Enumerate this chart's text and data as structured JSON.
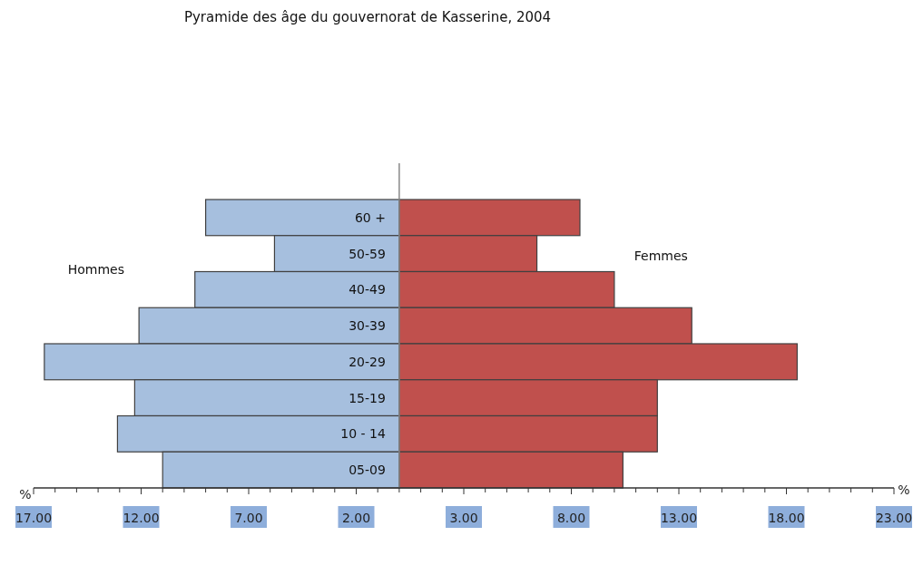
{
  "chart_data": {
    "type": "bar",
    "orientation": "horizontal",
    "stacked": true,
    "title": "Pyramide des âge du gouvernorat de Kasserine, 2004",
    "xlabel": "%",
    "legend": false,
    "categories": [
      "60 +",
      "50-59",
      "40-49",
      "30-39",
      "20-29",
      "15-19",
      "10 - 14",
      "05-09"
    ],
    "series": [
      {
        "name": "Hommes",
        "color": "#a6bfde",
        "values": [
          -9.0,
          -5.8,
          -9.5,
          -12.1,
          -16.5,
          -12.3,
          -13.1,
          -11.0
        ]
      },
      {
        "name": "Femmes",
        "color": "#c0504d",
        "values": [
          8.4,
          6.4,
          10.0,
          13.6,
          18.5,
          12.0,
          12.0,
          10.4
        ]
      }
    ],
    "xlim": [
      -17,
      23
    ],
    "xticks": [
      {
        "value": -17,
        "label": "17.00"
      },
      {
        "value": -16,
        "label": null
      },
      {
        "value": -15,
        "label": null
      },
      {
        "value": -14,
        "label": null
      },
      {
        "value": -13,
        "label": null
      },
      {
        "value": -12,
        "label": "12.00"
      },
      {
        "value": -11,
        "label": null
      },
      {
        "value": -10,
        "label": null
      },
      {
        "value": -9,
        "label": null
      },
      {
        "value": -8,
        "label": null
      },
      {
        "value": -7,
        "label": "7.00"
      },
      {
        "value": -6,
        "label": null
      },
      {
        "value": -5,
        "label": null
      },
      {
        "value": -4,
        "label": null
      },
      {
        "value": -3,
        "label": null
      },
      {
        "value": -2,
        "label": "2.00"
      },
      {
        "value": -1,
        "label": null
      },
      {
        "value": 0,
        "label": null
      },
      {
        "value": 1,
        "label": null
      },
      {
        "value": 2,
        "label": null
      },
      {
        "value": 3,
        "label": "3.00"
      },
      {
        "value": 4,
        "label": null
      },
      {
        "value": 5,
        "label": null
      },
      {
        "value": 6,
        "label": null
      },
      {
        "value": 7,
        "label": null
      },
      {
        "value": 8,
        "label": "8.00"
      },
      {
        "value": 9,
        "label": null
      },
      {
        "value": 10,
        "label": null
      },
      {
        "value": 11,
        "label": null
      },
      {
        "value": 12,
        "label": null
      },
      {
        "value": 13,
        "label": "13.00"
      },
      {
        "value": 14,
        "label": null
      },
      {
        "value": 15,
        "label": null
      },
      {
        "value": 16,
        "label": null
      },
      {
        "value": 17,
        "label": null
      },
      {
        "value": 18,
        "label": "18.00"
      },
      {
        "value": 19,
        "label": null
      },
      {
        "value": 20,
        "label": null
      },
      {
        "value": 21,
        "label": null
      },
      {
        "value": 22,
        "label": null
      },
      {
        "value": 23,
        "label": "23.00"
      }
    ]
  }
}
